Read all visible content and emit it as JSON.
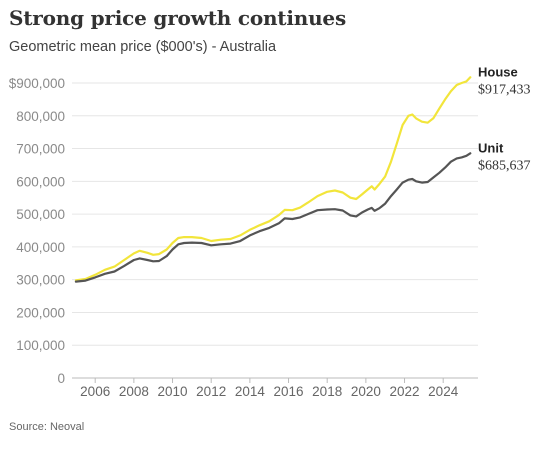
{
  "header": {
    "title": "Strong price growth continues",
    "subtitle": "Geometric mean price ($000's) - Australia"
  },
  "footer": {
    "source": "Source: Neoval"
  },
  "colors": {
    "house": "#f2e53b",
    "unit": "#555555",
    "grid": "#e6e6e6",
    "axis": "#bbbbbb"
  },
  "chart_data": {
    "type": "line",
    "title": "Strong price growth continues",
    "subtitle": "Geometric mean price ($000's) - Australia",
    "xlabel": "",
    "ylabel": "",
    "xlim": [
      2004.8,
      2025.8
    ],
    "ylim": [
      0,
      900000
    ],
    "grid": "horizontal",
    "legend": "direct labels at line ends (right)",
    "x_ticks": [
      2006,
      2008,
      2010,
      2012,
      2014,
      2016,
      2018,
      2020,
      2022,
      2024
    ],
    "x_tick_labels": [
      "2006",
      "2008",
      "2010",
      "2012",
      "2014",
      "2016",
      "2018",
      "2020",
      "2022",
      "2024"
    ],
    "y_ticks": [
      0,
      100000,
      200000,
      300000,
      400000,
      500000,
      600000,
      700000,
      800000,
      900000
    ],
    "y_tick_labels": [
      "0",
      "100,000",
      "200,000",
      "300,000",
      "400,000",
      "500,000",
      "600,000",
      "700,000",
      "800,000",
      "$900,000"
    ],
    "series": [
      {
        "name": "House",
        "end_label": "$917,433",
        "color": "#f2e53b",
        "points": [
          [
            2005.0,
            298000
          ],
          [
            2005.5,
            302000
          ],
          [
            2006.0,
            315000
          ],
          [
            2006.5,
            330000
          ],
          [
            2007.0,
            340000
          ],
          [
            2007.5,
            360000
          ],
          [
            2008.0,
            380000
          ],
          [
            2008.3,
            388000
          ],
          [
            2008.7,
            382000
          ],
          [
            2009.0,
            376000
          ],
          [
            2009.3,
            378000
          ],
          [
            2009.7,
            392000
          ],
          [
            2010.0,
            412000
          ],
          [
            2010.3,
            427000
          ],
          [
            2010.6,
            430000
          ],
          [
            2011.0,
            430000
          ],
          [
            2011.5,
            427000
          ],
          [
            2012.0,
            418000
          ],
          [
            2012.5,
            422000
          ],
          [
            2013.0,
            424000
          ],
          [
            2013.5,
            435000
          ],
          [
            2014.0,
            452000
          ],
          [
            2014.5,
            466000
          ],
          [
            2015.0,
            478000
          ],
          [
            2015.5,
            497000
          ],
          [
            2015.8,
            513000
          ],
          [
            2016.2,
            512000
          ],
          [
            2016.6,
            520000
          ],
          [
            2017.0,
            535000
          ],
          [
            2017.5,
            555000
          ],
          [
            2018.0,
            568000
          ],
          [
            2018.4,
            572000
          ],
          [
            2018.8,
            566000
          ],
          [
            2019.2,
            550000
          ],
          [
            2019.5,
            546000
          ],
          [
            2019.8,
            560000
          ],
          [
            2020.1,
            575000
          ],
          [
            2020.3,
            585000
          ],
          [
            2020.45,
            575000
          ],
          [
            2020.7,
            592000
          ],
          [
            2021.0,
            615000
          ],
          [
            2021.3,
            660000
          ],
          [
            2021.6,
            715000
          ],
          [
            2021.9,
            772000
          ],
          [
            2022.2,
            800000
          ],
          [
            2022.4,
            804000
          ],
          [
            2022.6,
            792000
          ],
          [
            2022.9,
            782000
          ],
          [
            2023.2,
            779000
          ],
          [
            2023.5,
            793000
          ],
          [
            2023.8,
            822000
          ],
          [
            2024.1,
            850000
          ],
          [
            2024.4,
            875000
          ],
          [
            2024.7,
            894000
          ],
          [
            2024.95,
            900000
          ],
          [
            2025.2,
            905000
          ],
          [
            2025.4,
            917433
          ]
        ]
      },
      {
        "name": "Unit",
        "end_label": "$685,637",
        "color": "#555555",
        "points": [
          [
            2005.0,
            294000
          ],
          [
            2005.5,
            297000
          ],
          [
            2006.0,
            307000
          ],
          [
            2006.5,
            318000
          ],
          [
            2007.0,
            325000
          ],
          [
            2007.5,
            342000
          ],
          [
            2008.0,
            360000
          ],
          [
            2008.3,
            365000
          ],
          [
            2008.7,
            360000
          ],
          [
            2009.0,
            356000
          ],
          [
            2009.3,
            357000
          ],
          [
            2009.7,
            372000
          ],
          [
            2010.0,
            392000
          ],
          [
            2010.3,
            408000
          ],
          [
            2010.6,
            412000
          ],
          [
            2011.0,
            413000
          ],
          [
            2011.5,
            412000
          ],
          [
            2012.0,
            405000
          ],
          [
            2012.5,
            408000
          ],
          [
            2013.0,
            410000
          ],
          [
            2013.5,
            418000
          ],
          [
            2014.0,
            435000
          ],
          [
            2014.5,
            448000
          ],
          [
            2015.0,
            458000
          ],
          [
            2015.5,
            472000
          ],
          [
            2015.8,
            487000
          ],
          [
            2016.2,
            485000
          ],
          [
            2016.6,
            490000
          ],
          [
            2017.0,
            500000
          ],
          [
            2017.5,
            512000
          ],
          [
            2018.0,
            514000
          ],
          [
            2018.4,
            515000
          ],
          [
            2018.8,
            511000
          ],
          [
            2019.2,
            496000
          ],
          [
            2019.5,
            493000
          ],
          [
            2019.8,
            505000
          ],
          [
            2020.1,
            514000
          ],
          [
            2020.3,
            519000
          ],
          [
            2020.45,
            510000
          ],
          [
            2020.7,
            518000
          ],
          [
            2021.0,
            532000
          ],
          [
            2021.3,
            555000
          ],
          [
            2021.6,
            575000
          ],
          [
            2021.9,
            596000
          ],
          [
            2022.2,
            605000
          ],
          [
            2022.4,
            607000
          ],
          [
            2022.6,
            600000
          ],
          [
            2022.9,
            596000
          ],
          [
            2023.2,
            598000
          ],
          [
            2023.5,
            612000
          ],
          [
            2023.8,
            626000
          ],
          [
            2024.1,
            642000
          ],
          [
            2024.4,
            660000
          ],
          [
            2024.7,
            670000
          ],
          [
            2024.95,
            673000
          ],
          [
            2025.2,
            678000
          ],
          [
            2025.4,
            685637
          ]
        ]
      }
    ]
  }
}
